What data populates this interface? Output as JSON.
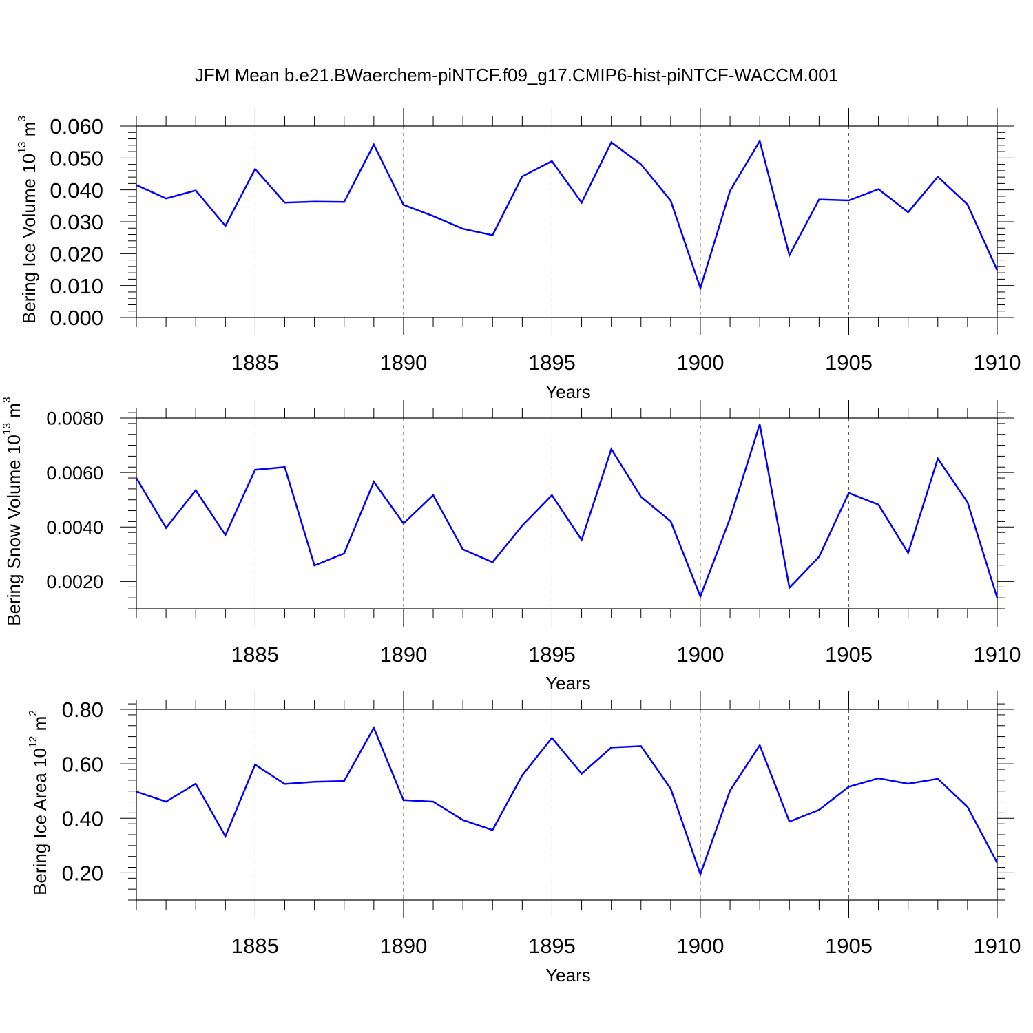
{
  "title": "JFM Mean b.e21.BWaerchem-piNTCF.f09_g17.CMIP6-hist-piNTCF-WACCM.001",
  "chart_data": [
    {
      "type": "line",
      "xlabel": "Years",
      "ylabel": "Bering Ice Volume 10",
      "ylabel_sup": "13",
      "ylabel_unit": " m",
      "ylabel_unit_sup": "3",
      "xlim": [
        1881,
        1910
      ],
      "ylim": [
        0.0,
        0.06
      ],
      "xticks": [
        1885,
        1890,
        1895,
        1900,
        1905,
        1910
      ],
      "yticks": [
        0.0,
        0.01,
        0.02,
        0.03,
        0.04,
        0.05,
        0.06
      ],
      "ytick_labels": [
        "0.000",
        "0.010",
        "0.020",
        "0.030",
        "0.040",
        "0.050",
        "0.060"
      ],
      "line_color": "#0000ff",
      "x": [
        1881,
        1882,
        1883,
        1884,
        1885,
        1886,
        1887,
        1888,
        1889,
        1890,
        1891,
        1892,
        1893,
        1894,
        1895,
        1896,
        1897,
        1898,
        1899,
        1900,
        1901,
        1902,
        1903,
        1904,
        1905,
        1906,
        1907,
        1908,
        1909,
        1910
      ],
      "values": [
        0.0415,
        0.0373,
        0.0398,
        0.0287,
        0.0465,
        0.036,
        0.0363,
        0.0362,
        0.0542,
        0.0353,
        0.0318,
        0.0278,
        0.0258,
        0.0442,
        0.049,
        0.036,
        0.0549,
        0.048,
        0.0366,
        0.0092,
        0.0397,
        0.0553,
        0.0195,
        0.037,
        0.0367,
        0.0402,
        0.033,
        0.0441,
        0.0354,
        0.0148
      ]
    },
    {
      "type": "line",
      "xlabel": "Years",
      "ylabel": "Bering Snow Volume 10",
      "ylabel_sup": "13",
      "ylabel_unit": " m",
      "ylabel_unit_sup": "3",
      "xlim": [
        1881,
        1910
      ],
      "ylim": [
        0.001,
        0.008
      ],
      "xticks": [
        1885,
        1890,
        1895,
        1900,
        1905,
        1910
      ],
      "yticks": [
        0.002,
        0.004,
        0.006,
        0.008
      ],
      "ytick_labels": [
        "0.0020",
        "0.0040",
        "0.0060",
        "0.0080"
      ],
      "line_color": "#0000ff",
      "x": [
        1881,
        1882,
        1883,
        1884,
        1885,
        1886,
        1887,
        1888,
        1889,
        1890,
        1891,
        1892,
        1893,
        1894,
        1895,
        1896,
        1897,
        1898,
        1899,
        1900,
        1901,
        1902,
        1903,
        1904,
        1905,
        1906,
        1907,
        1908,
        1909,
        1910
      ],
      "values": [
        0.0058,
        0.00397,
        0.00535,
        0.00371,
        0.0061,
        0.0062,
        0.00259,
        0.00303,
        0.00566,
        0.00413,
        0.00517,
        0.00318,
        0.00271,
        0.00405,
        0.00517,
        0.00353,
        0.00686,
        0.00511,
        0.00421,
        0.00145,
        0.00432,
        0.00777,
        0.00177,
        0.00291,
        0.00525,
        0.00482,
        0.00305,
        0.00651,
        0.00491,
        0.0014
      ]
    },
    {
      "type": "line",
      "xlabel": "Years",
      "ylabel": "Bering Ice Area 10",
      "ylabel_sup": "12",
      "ylabel_unit": " m",
      "ylabel_unit_sup": "2",
      "xlim": [
        1881,
        1910
      ],
      "ylim": [
        0.1,
        0.8
      ],
      "xticks": [
        1885,
        1890,
        1895,
        1900,
        1905,
        1910
      ],
      "yticks": [
        0.2,
        0.4,
        0.6,
        0.8
      ],
      "ytick_labels": [
        "0.20",
        "0.40",
        "0.60",
        "0.80"
      ],
      "line_color": "#0000ff",
      "x": [
        1881,
        1882,
        1883,
        1884,
        1885,
        1886,
        1887,
        1888,
        1889,
        1890,
        1891,
        1892,
        1893,
        1894,
        1895,
        1896,
        1897,
        1898,
        1899,
        1900,
        1901,
        1902,
        1903,
        1904,
        1905,
        1906,
        1907,
        1908,
        1909,
        1910
      ],
      "values": [
        0.498,
        0.461,
        0.527,
        0.334,
        0.597,
        0.526,
        0.534,
        0.537,
        0.732,
        0.467,
        0.461,
        0.394,
        0.357,
        0.558,
        0.695,
        0.564,
        0.66,
        0.665,
        0.509,
        0.195,
        0.502,
        0.668,
        0.388,
        0.431,
        0.516,
        0.547,
        0.527,
        0.545,
        0.442,
        0.237
      ]
    }
  ]
}
